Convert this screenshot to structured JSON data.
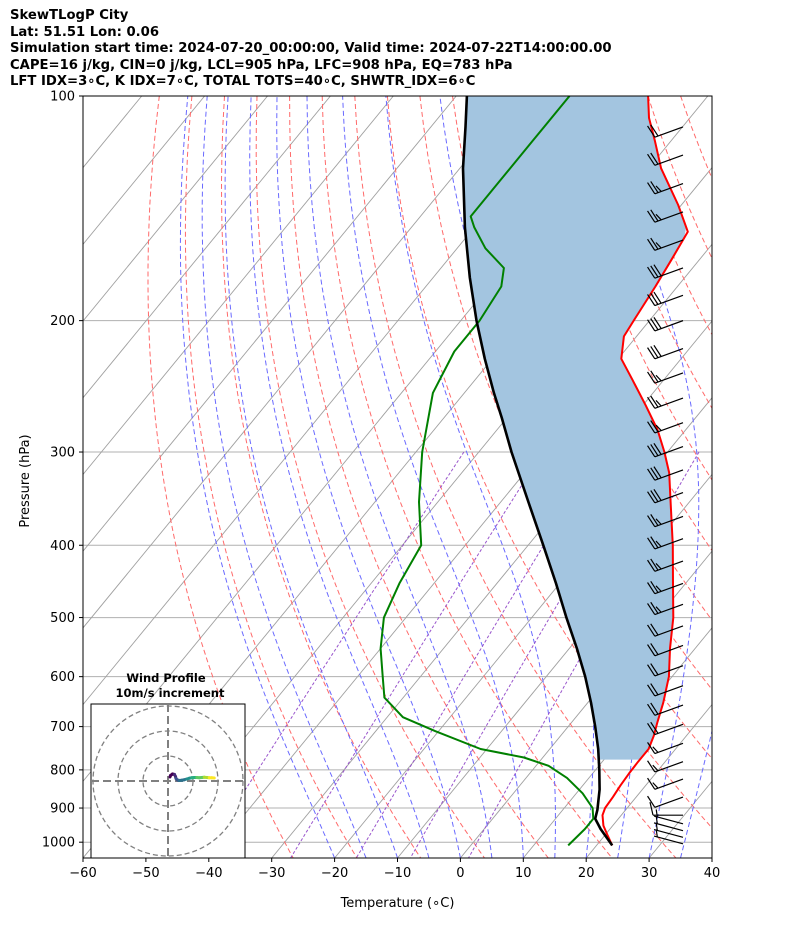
{
  "header": {
    "title": "SkewTLogP City",
    "location": "Lat: 51.51   Lon: 0.06",
    "times": "Simulation start time: 2024-07-20_00:00:00, Valid time: 2024-07-22T14:00:00.00",
    "params1": "CAPE=16 j/kg, CIN=0 j/kg, LCL=905 hPa, LFC=908 hPa, EQ=783 hPa",
    "params2": "LFT IDX=3∘C, K IDX=7∘C, TOTAL TOTS=40∘C, SHWTR_IDX=6∘C"
  },
  "chart_data": {
    "type": "line",
    "title": "",
    "xlabel": "Temperature (∘C)",
    "ylabel": "Pressure (hPa)",
    "x_axis": {
      "min": -60,
      "max": 40,
      "ticks": [
        "−60",
        "−50",
        "−40",
        "−30",
        "−20",
        "−10",
        "0",
        "10",
        "20",
        "30",
        "40"
      ]
    },
    "y_axis": {
      "scale": "log",
      "min": 100,
      "max": 1050,
      "ticks": [
        "100",
        "200",
        "300",
        "400",
        "500",
        "600",
        "700",
        "800",
        "900",
        "1000"
      ]
    },
    "grid": true,
    "colors": {
      "temperature": "#ff0000",
      "dewpoint": "#008000",
      "parcel": "#000000",
      "cape_fill": "#a3c5e0",
      "isotherm": "#a0a0a0",
      "dry_adiabat": "#ff6a6a",
      "moist_adiabat": "#6a6aff",
      "mixing_ratio": "#9955cc"
    },
    "temperature_profile": [
      {
        "p": 1010,
        "t": 22.5
      },
      {
        "p": 980,
        "t": 20.5
      },
      {
        "p": 950,
        "t": 18.5
      },
      {
        "p": 920,
        "t": 17.0
      },
      {
        "p": 900,
        "t": 16.5
      },
      {
        "p": 870,
        "t": 16.3
      },
      {
        "p": 840,
        "t": 16.0
      },
      {
        "p": 810,
        "t": 15.8
      },
      {
        "p": 780,
        "t": 15.7
      },
      {
        "p": 750,
        "t": 15.7
      },
      {
        "p": 720,
        "t": 14.8
      },
      {
        "p": 690,
        "t": 13.6
      },
      {
        "p": 650,
        "t": 12.0
      },
      {
        "p": 600,
        "t": 9.5
      },
      {
        "p": 550,
        "t": 6.0
      },
      {
        "p": 500,
        "t": 2.5
      },
      {
        "p": 450,
        "t": -2.0
      },
      {
        "p": 400,
        "t": -7.0
      },
      {
        "p": 350,
        "t": -13.0
      },
      {
        "p": 320,
        "t": -17.0
      },
      {
        "p": 300,
        "t": -20.5
      },
      {
        "p": 280,
        "t": -24.5
      },
      {
        "p": 260,
        "t": -29.5
      },
      {
        "p": 240,
        "t": -35.0
      },
      {
        "p": 225,
        "t": -39.5
      },
      {
        "p": 210,
        "t": -42.0
      },
      {
        "p": 200,
        "t": -42.5
      },
      {
        "p": 180,
        "t": -43.5
      },
      {
        "p": 165,
        "t": -44.5
      },
      {
        "p": 152,
        "t": -45.5
      },
      {
        "p": 140,
        "t": -50.5
      },
      {
        "p": 125,
        "t": -58.0
      },
      {
        "p": 115,
        "t": -62.5
      },
      {
        "p": 107,
        "t": -66.5
      },
      {
        "p": 100,
        "t": -69.5
      }
    ],
    "dewpoint_profile": [
      {
        "p": 1010,
        "t": 15.5
      },
      {
        "p": 960,
        "t": 16.0
      },
      {
        "p": 930,
        "t": 16.0
      },
      {
        "p": 900,
        "t": 14.5
      },
      {
        "p": 860,
        "t": 11.0
      },
      {
        "p": 820,
        "t": 6.5
      },
      {
        "p": 790,
        "t": 2.0
      },
      {
        "p": 770,
        "t": -3.0
      },
      {
        "p": 750,
        "t": -11.0
      },
      {
        "p": 710,
        "t": -20.5
      },
      {
        "p": 680,
        "t": -27.5
      },
      {
        "p": 640,
        "t": -33.0
      },
      {
        "p": 600,
        "t": -36.0
      },
      {
        "p": 550,
        "t": -40.0
      },
      {
        "p": 500,
        "t": -43.5
      },
      {
        "p": 450,
        "t": -45.5
      },
      {
        "p": 400,
        "t": -47.0
      },
      {
        "p": 350,
        "t": -53.0
      },
      {
        "p": 300,
        "t": -59.0
      },
      {
        "p": 250,
        "t": -65.0
      },
      {
        "p": 220,
        "t": -67.0
      },
      {
        "p": 200,
        "t": -67.0
      },
      {
        "p": 180,
        "t": -68.0
      },
      {
        "p": 170,
        "t": -70.0
      },
      {
        "p": 160,
        "t": -75.5
      },
      {
        "p": 150,
        "t": -80.0
      },
      {
        "p": 145,
        "t": -82.0
      },
      {
        "p": 130,
        "t": -82.0
      },
      {
        "p": 115,
        "t": -82.0
      },
      {
        "p": 100,
        "t": -82.0
      }
    ],
    "parcel_profile": [
      {
        "p": 1010,
        "t": 22.5
      },
      {
        "p": 960,
        "t": 18.5
      },
      {
        "p": 930,
        "t": 16.3
      },
      {
        "p": 905,
        "t": 15.5
      },
      {
        "p": 850,
        "t": 13.2
      },
      {
        "p": 800,
        "t": 10.6
      },
      {
        "p": 750,
        "t": 7.7
      },
      {
        "p": 700,
        "t": 4.3
      },
      {
        "p": 650,
        "t": 0.5
      },
      {
        "p": 600,
        "t": -3.8
      },
      {
        "p": 550,
        "t": -8.8
      },
      {
        "p": 500,
        "t": -14.5
      },
      {
        "p": 450,
        "t": -20.6
      },
      {
        "p": 400,
        "t": -27.6
      },
      {
        "p": 350,
        "t": -35.6
      },
      {
        "p": 300,
        "t": -44.8
      },
      {
        "p": 270,
        "t": -50.8
      },
      {
        "p": 250,
        "t": -55.3
      },
      {
        "p": 225,
        "t": -61.2
      },
      {
        "p": 200,
        "t": -67.5
      },
      {
        "p": 175,
        "t": -74.2
      },
      {
        "p": 150,
        "t": -81.5
      },
      {
        "p": 125,
        "t": -89.5
      },
      {
        "p": 110,
        "t": -94.5
      },
      {
        "p": 100,
        "t": -98.3
      }
    ],
    "wind_barbs": [
      {
        "p": 1005,
        "dir": 285,
        "kt": 7
      },
      {
        "p": 985,
        "dir": 285,
        "kt": 7
      },
      {
        "p": 965,
        "dir": 285,
        "kt": 7
      },
      {
        "p": 945,
        "dir": 285,
        "kt": 7
      },
      {
        "p": 920,
        "dir": 270,
        "kt": 8
      },
      {
        "p": 870,
        "dir": 250,
        "kt": 12
      },
      {
        "p": 823,
        "dir": 250,
        "kt": 13
      },
      {
        "p": 780,
        "dir": 250,
        "kt": 15
      },
      {
        "p": 737,
        "dir": 250,
        "kt": 15
      },
      {
        "p": 695,
        "dir": 250,
        "kt": 20
      },
      {
        "p": 655,
        "dir": 250,
        "kt": 20
      },
      {
        "p": 617,
        "dir": 250,
        "kt": 20
      },
      {
        "p": 580,
        "dir": 250,
        "kt": 20
      },
      {
        "p": 545,
        "dir": 250,
        "kt": 20
      },
      {
        "p": 513,
        "dir": 250,
        "kt": 20
      },
      {
        "p": 480,
        "dir": 250,
        "kt": 25
      },
      {
        "p": 450,
        "dir": 250,
        "kt": 25
      },
      {
        "p": 420,
        "dir": 250,
        "kt": 25
      },
      {
        "p": 392,
        "dir": 250,
        "kt": 25
      },
      {
        "p": 366,
        "dir": 250,
        "kt": 25
      },
      {
        "p": 340,
        "dir": 250,
        "kt": 30
      },
      {
        "p": 317,
        "dir": 250,
        "kt": 30
      },
      {
        "p": 295,
        "dir": 250,
        "kt": 30
      },
      {
        "p": 274,
        "dir": 250,
        "kt": 25
      },
      {
        "p": 254,
        "dir": 250,
        "kt": 25
      },
      {
        "p": 235,
        "dir": 250,
        "kt": 25
      },
      {
        "p": 218,
        "dir": 250,
        "kt": 30
      },
      {
        "p": 200,
        "dir": 250,
        "kt": 30
      },
      {
        "p": 185,
        "dir": 250,
        "kt": 30
      },
      {
        "p": 170,
        "dir": 250,
        "kt": 30
      },
      {
        "p": 156,
        "dir": 250,
        "kt": 25
      },
      {
        "p": 143,
        "dir": 250,
        "kt": 25
      },
      {
        "p": 131,
        "dir": 250,
        "kt": 25
      },
      {
        "p": 120,
        "dir": 250,
        "kt": 20
      },
      {
        "p": 110,
        "dir": 250,
        "kt": 20
      }
    ],
    "hodograph": {
      "title": "Wind Profile",
      "subtitle": "10m/s increment",
      "rings_ms": [
        10,
        20,
        30
      ],
      "points": [
        {
          "u": 0.8,
          "v": 1.6
        },
        {
          "u": 1.0,
          "v": 2.2
        },
        {
          "u": 1.8,
          "v": 2.8
        },
        {
          "u": 2.6,
          "v": 2.6
        },
        {
          "u": 3.0,
          "v": 1.8
        },
        {
          "u": 3.2,
          "v": 1.0
        },
        {
          "u": 3.8,
          "v": 0.4
        },
        {
          "u": 4.5,
          "v": 0.2
        },
        {
          "u": 5.5,
          "v": 0.3
        },
        {
          "u": 6.5,
          "v": 0.5
        },
        {
          "u": 7.5,
          "v": 0.8
        },
        {
          "u": 8.5,
          "v": 1.1
        },
        {
          "u": 9.5,
          "v": 1.3
        },
        {
          "u": 10.5,
          "v": 1.4
        },
        {
          "u": 11.5,
          "v": 1.4
        },
        {
          "u": 12.5,
          "v": 1.3
        },
        {
          "u": 13.5,
          "v": 1.4
        },
        {
          "u": 14.5,
          "v": 1.5
        },
        {
          "u": 15.5,
          "v": 1.4
        },
        {
          "u": 16.5,
          "v": 1.3
        },
        {
          "u": 17.5,
          "v": 1.3
        },
        {
          "u": 18.5,
          "v": 1.2
        }
      ]
    }
  }
}
